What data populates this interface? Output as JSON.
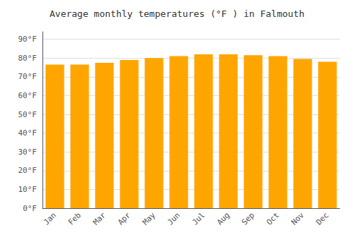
{
  "chart_data": {
    "type": "bar",
    "title": "Average monthly temperatures (°F ) in Falmouth",
    "categories": [
      "Jan",
      "Feb",
      "Mar",
      "Apr",
      "May",
      "Jun",
      "Jul",
      "Aug",
      "Sep",
      "Oct",
      "Nov",
      "Dec"
    ],
    "values": [
      76.5,
      76.5,
      77.5,
      79.0,
      80.0,
      81.0,
      82.0,
      82.0,
      81.5,
      81.0,
      79.5,
      78.0
    ],
    "color": "#FFA500",
    "ylim": [
      0,
      94
    ],
    "yticks": [
      {
        "value": 0,
        "label": "0°F"
      },
      {
        "value": 10,
        "label": "10°F"
      },
      {
        "value": 20,
        "label": "20°F"
      },
      {
        "value": 30,
        "label": "30°F"
      },
      {
        "value": 40,
        "label": "40°F"
      },
      {
        "value": 50,
        "label": "50°F"
      },
      {
        "value": 60,
        "label": "60°F"
      },
      {
        "value": 70,
        "label": "70°F"
      },
      {
        "value": 80,
        "label": "80°F"
      },
      {
        "value": 90,
        "label": "90°F"
      }
    ],
    "grid": true
  }
}
